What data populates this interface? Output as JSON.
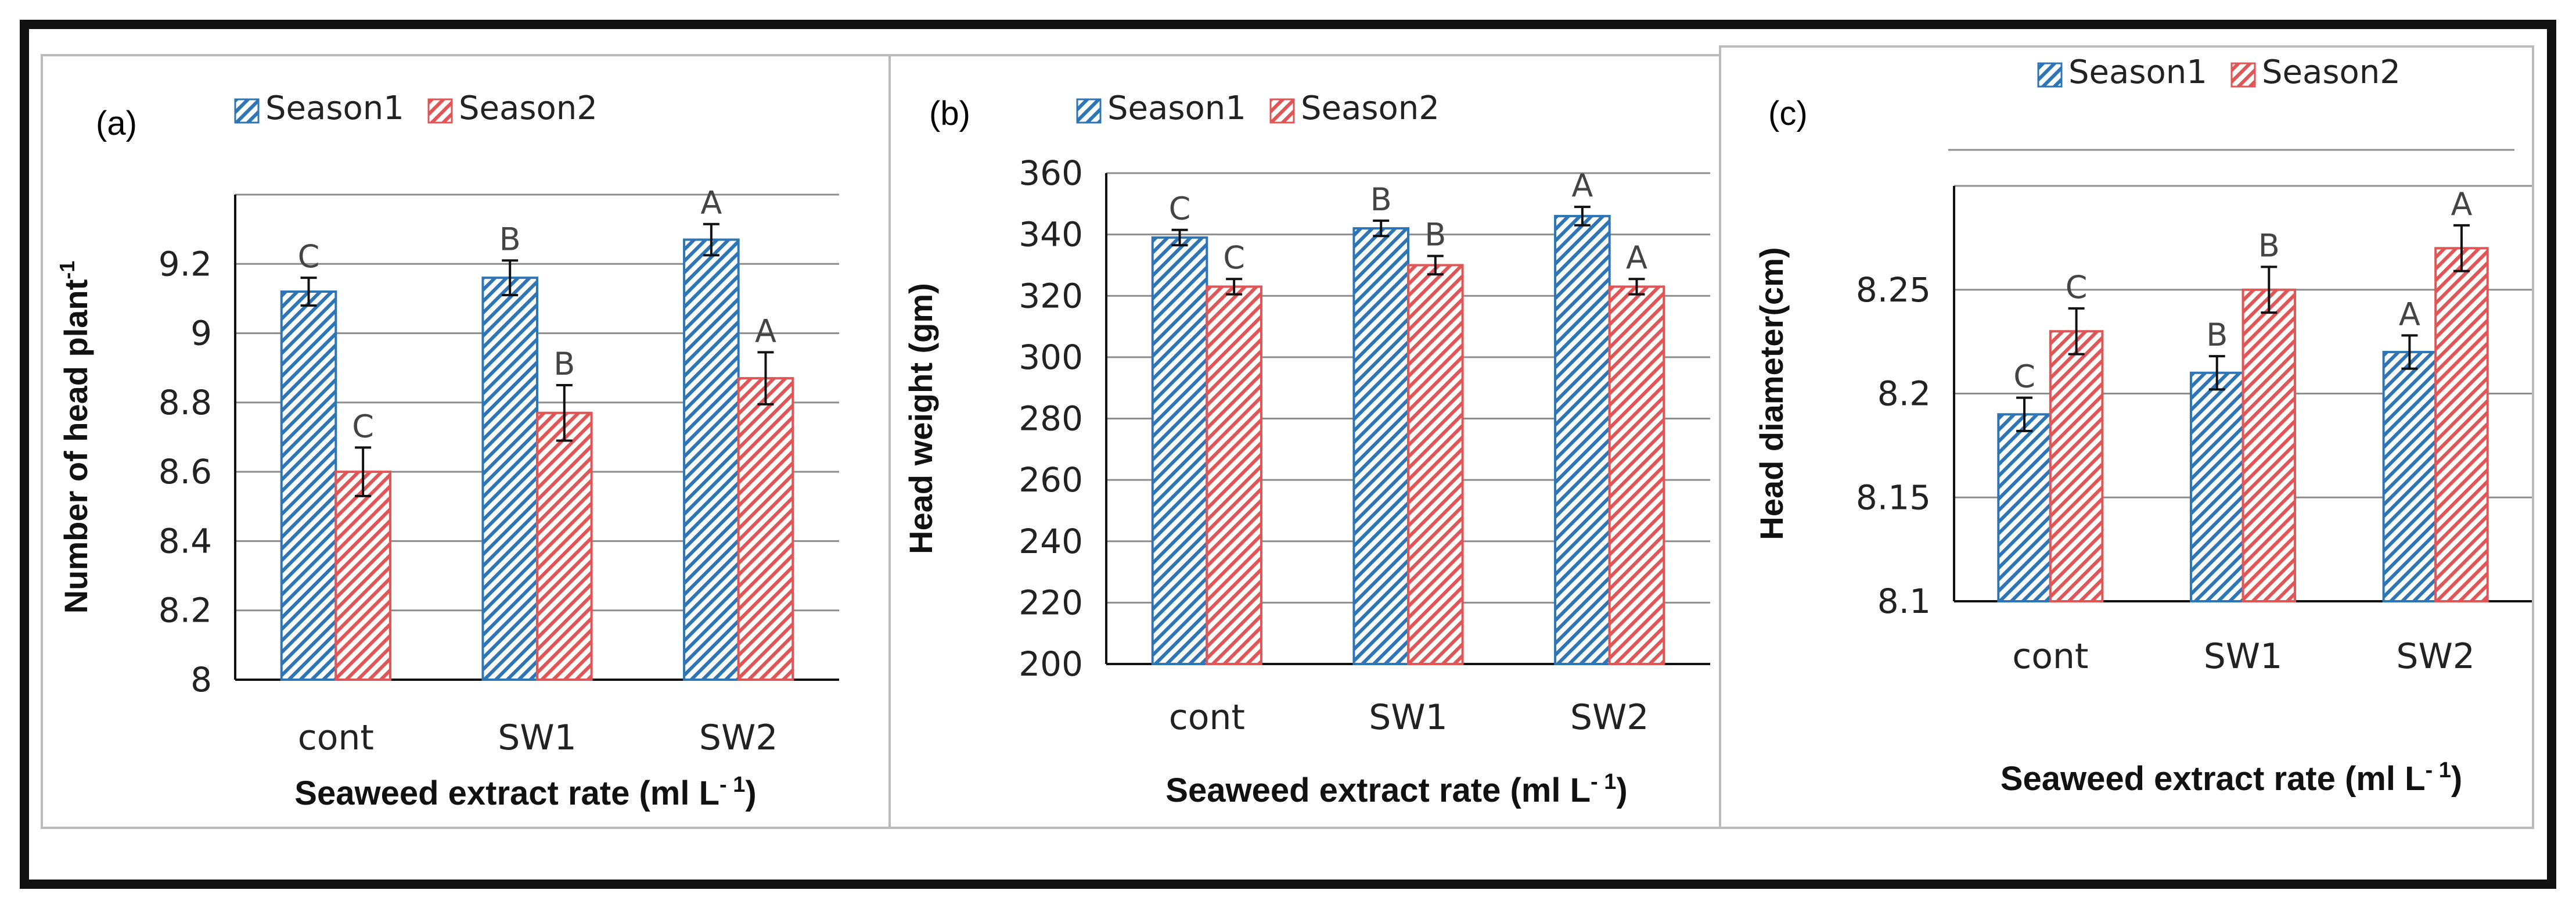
{
  "figure": {
    "colors": {
      "season1": "#2E75B6",
      "season2": "#E05555",
      "grid": "#8c8c8c",
      "frame": "#111111"
    }
  },
  "chart_data": [
    {
      "type": "bar",
      "panel": "(a)",
      "categories": [
        "cont",
        "SW1",
        "SW2"
      ],
      "series": [
        {
          "name": "Season1",
          "values": [
            9.12,
            9.16,
            9.27
          ],
          "errors": [
            0.04,
            0.05,
            0.045
          ],
          "letters": [
            "C",
            "B",
            "A"
          ]
        },
        {
          "name": "Season2",
          "values": [
            8.6,
            8.77,
            8.87
          ],
          "errors": [
            0.07,
            0.08,
            0.075
          ],
          "letters": [
            "C",
            "B",
            "A"
          ]
        }
      ],
      "ylim": [
        8,
        9.4
      ],
      "yticks": [
        8,
        8.2,
        8.4,
        8.6,
        8.8,
        9,
        9.2
      ],
      "ytick_labels": [
        "8",
        "8.2",
        "8.4",
        "8.6",
        "8.8",
        "9",
        "9.2"
      ],
      "ylabel": "Number of head plant",
      "ylabel_superscript": "-1",
      "xlabel": "Seaweed extract rate (ml L",
      "xlabel_superscript": "- 1",
      "xlabel_close": ")",
      "grid": true,
      "legend": [
        "Season1",
        "Season2"
      ],
      "legend_position": "top"
    },
    {
      "type": "bar",
      "panel": "(b)",
      "categories": [
        "cont",
        "SW1",
        "SW2"
      ],
      "series": [
        {
          "name": "Season1",
          "values": [
            339,
            342,
            346
          ],
          "errors": [
            2.5,
            2.5,
            3
          ],
          "letters": [
            "C",
            "B",
            "A"
          ]
        },
        {
          "name": "Season2",
          "values": [
            323,
            330,
            323
          ],
          "errors": [
            2.5,
            3,
            2.5
          ],
          "letters": [
            "C",
            "B",
            "A"
          ]
        }
      ],
      "ylim": [
        200,
        360
      ],
      "yticks": [
        200,
        220,
        240,
        260,
        280,
        300,
        320,
        340,
        360
      ],
      "ytick_labels": [
        "200",
        "220",
        "240",
        "260",
        "280",
        "300",
        "320",
        "340",
        "360"
      ],
      "ylabel": "Head weight (gm)",
      "xlabel": "Seaweed extract rate (ml L",
      "xlabel_superscript": "- 1",
      "xlabel_close": ")",
      "grid": true,
      "legend": [
        "Season1",
        "Season2"
      ],
      "legend_position": "top"
    },
    {
      "type": "bar",
      "panel": "(c)",
      "categories": [
        "cont",
        "SW1",
        "SW2"
      ],
      "series": [
        {
          "name": "Season1",
          "values": [
            8.19,
            8.21,
            8.22
          ],
          "errors": [
            0.008,
            0.008,
            0.008
          ],
          "letters": [
            "C",
            "B",
            "A"
          ]
        },
        {
          "name": "Season2",
          "values": [
            8.23,
            8.25,
            8.27
          ],
          "errors": [
            0.011,
            0.011,
            0.011
          ],
          "letters": [
            "C",
            "B",
            "A"
          ]
        }
      ],
      "ylim": [
        8.1,
        8.3
      ],
      "yticks": [
        8.1,
        8.15,
        8.2,
        8.25
      ],
      "ytick_labels": [
        "8.1",
        "8.15",
        "8.2",
        "8.25"
      ],
      "ylabel": "Head diameter(cm)",
      "xlabel": "Seaweed extract rate (ml L",
      "xlabel_superscript": "- 1",
      "xlabel_close": ")",
      "grid": true,
      "legend": [
        "Season1",
        "Season2"
      ],
      "legend_position": "top-right"
    }
  ]
}
